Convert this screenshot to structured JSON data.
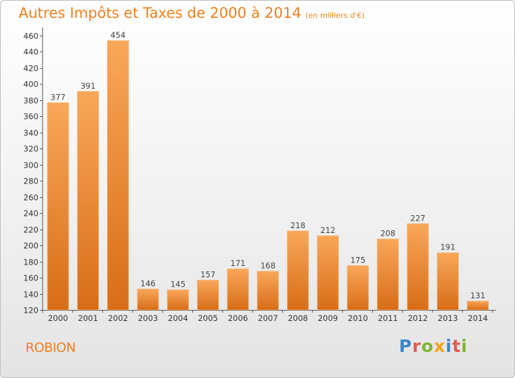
{
  "title": "Autres Impôts et Taxes de 2000 à 2014",
  "subtitle": "(en milliers d'€)",
  "location": "ROBION",
  "brand": "Proxiti",
  "colors": {
    "bar_light": "#f9a75a",
    "bar_dark": "#d86d17",
    "title": "#f07f1d"
  },
  "chart_data": {
    "type": "bar",
    "title": "Autres Impôts et Taxes de 2000 à 2014",
    "categories": [
      "2000",
      "2001",
      "2002",
      "2003",
      "2004",
      "2005",
      "2006",
      "2007",
      "2008",
      "2009",
      "2010",
      "2011",
      "2012",
      "2013",
      "2014"
    ],
    "values": [
      377,
      391,
      454,
      146,
      145,
      157,
      171,
      168,
      218,
      212,
      175,
      208,
      227,
      191,
      131
    ],
    "ylim": [
      120,
      460
    ],
    "yticks": [
      120,
      140,
      160,
      180,
      200,
      220,
      240,
      260,
      280,
      300,
      320,
      340,
      360,
      380,
      400,
      420,
      440,
      460
    ],
    "grid": false,
    "xlabel": "",
    "ylabel": ""
  }
}
